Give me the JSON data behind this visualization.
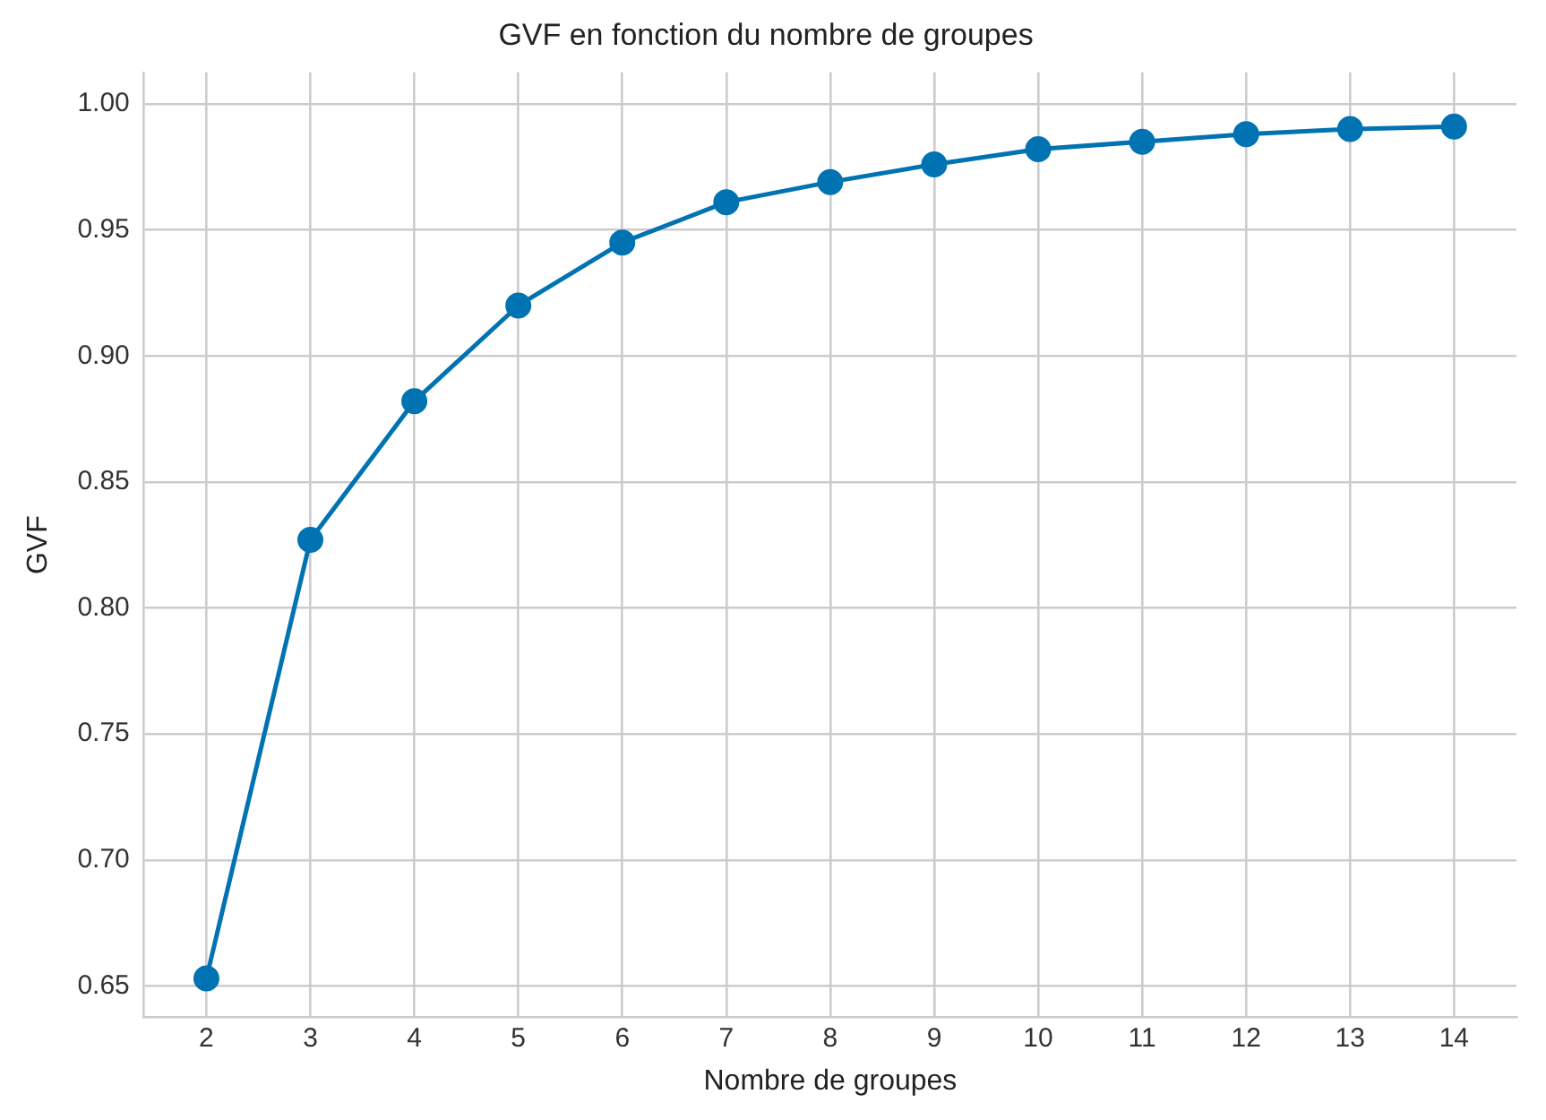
{
  "chart_data": {
    "type": "line",
    "title": "GVF en fonction du nombre de groupes",
    "xlabel": "Nombre de groupes",
    "ylabel": "GVF",
    "x": [
      2,
      3,
      4,
      5,
      6,
      7,
      8,
      9,
      10,
      11,
      12,
      13,
      14
    ],
    "series": [
      {
        "color": "#0173b2",
        "values": [
          0.653,
          0.827,
          0.882,
          0.92,
          0.945,
          0.961,
          0.969,
          0.976,
          0.982,
          0.985,
          0.988,
          0.99,
          0.991
        ]
      }
    ],
    "xlim": [
      1.4,
      14.6
    ],
    "xticks": [
      2,
      3,
      4,
      5,
      6,
      7,
      8,
      9,
      10,
      11,
      12,
      13,
      14
    ],
    "ylim": [
      0.6375,
      1.0125
    ],
    "yticks": [
      {
        "value": 0.65,
        "label": "0.65"
      },
      {
        "value": 0.7,
        "label": "0.70"
      },
      {
        "value": 0.75,
        "label": "0.75"
      },
      {
        "value": 0.8,
        "label": "0.80"
      },
      {
        "value": 0.85,
        "label": "0.85"
      },
      {
        "value": 0.9,
        "label": "0.90"
      },
      {
        "value": 0.95,
        "label": "0.95"
      },
      {
        "value": 1.0,
        "label": "1.00"
      }
    ],
    "grid": true,
    "legend": false,
    "marker": "circle",
    "line_style": "solid"
  }
}
